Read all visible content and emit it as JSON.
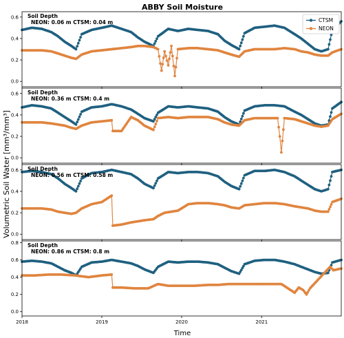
{
  "figure": {
    "title": "ABBY Soil Moisture",
    "xlabel": "Time",
    "ylabel": "Volumetric Soil Water [mm³/mm³]"
  },
  "chart_data": [
    {
      "type": "scatter",
      "panel_label": "Soil Depth",
      "depth_text": "NEON: 0.06 m  CTSM: 0.04 m",
      "ylim": [
        -0.05,
        0.65
      ],
      "yticks": [
        0.0,
        0.2,
        0.4,
        0.6
      ],
      "xlim": [
        "2018-01-01",
        "2021-12-31"
      ],
      "xticks": [
        "2018",
        "2019",
        "2020",
        "2021"
      ],
      "legend": {
        "placement": "top-right",
        "entries": [
          "CTSM",
          "NEON"
        ]
      },
      "series": [
        {
          "name": "CTSM",
          "color": "#1f6080",
          "x": [
            "2018-01-01",
            "2018-02-15",
            "2018-04-01",
            "2018-05-15",
            "2018-06-15",
            "2018-07-15",
            "2018-08-15",
            "2018-09-05",
            "2018-10-01",
            "2018-11-15",
            "2019-01-01",
            "2019-02-15",
            "2019-04-01",
            "2019-05-15",
            "2019-06-15",
            "2019-07-15",
            "2019-08-25",
            "2019-09-15",
            "2019-11-01",
            "2019-12-15",
            "2020-02-01",
            "2020-03-15",
            "2020-05-01",
            "2020-06-15",
            "2020-07-15",
            "2020-08-15",
            "2020-09-20",
            "2020-10-15",
            "2020-11-30",
            "2021-01-15",
            "2021-03-01",
            "2021-04-15",
            "2021-06-01",
            "2021-07-01",
            "2021-08-01",
            "2021-09-01",
            "2021-10-01",
            "2021-11-01",
            "2021-11-20",
            "2021-12-31"
          ],
          "y": [
            0.48,
            0.5,
            0.49,
            0.46,
            0.42,
            0.37,
            0.33,
            0.3,
            0.44,
            0.48,
            0.5,
            0.52,
            0.49,
            0.46,
            0.41,
            0.37,
            0.33,
            0.42,
            0.49,
            0.47,
            0.49,
            0.48,
            0.47,
            0.44,
            0.38,
            0.34,
            0.3,
            0.45,
            0.5,
            0.51,
            0.52,
            0.5,
            0.44,
            0.4,
            0.35,
            0.3,
            0.28,
            0.3,
            0.48,
            0.56
          ]
        },
        {
          "name": "NEON",
          "color": "#e0853f",
          "x": [
            "2018-01-01",
            "2018-02-15",
            "2018-04-01",
            "2018-05-15",
            "2018-06-15",
            "2018-07-15",
            "2018-08-15",
            "2018-09-05",
            "2018-10-01",
            "2018-11-15",
            "2019-01-01",
            "2019-02-15",
            "2019-04-01",
            "2019-05-15",
            "2019-06-15",
            "2019-07-15",
            "2019-08-25",
            "2019-09-15",
            "2019-10-01",
            "2019-10-15",
            "2019-11-01",
            "2019-11-15",
            "2019-12-01",
            "2019-12-15",
            "2020-02-01",
            "2020-03-15",
            "2020-05-01",
            "2020-06-15",
            "2020-07-15",
            "2020-08-15",
            "2020-09-20",
            "2020-10-15",
            "2020-11-30",
            "2021-01-15",
            "2021-03-01",
            "2021-04-15",
            "2021-06-01",
            "2021-07-01",
            "2021-08-01",
            "2021-09-01",
            "2021-10-01",
            "2021-11-01",
            "2021-11-20",
            "2021-12-31"
          ],
          "y": [
            0.29,
            0.29,
            0.29,
            0.28,
            0.26,
            0.24,
            0.22,
            0.21,
            0.25,
            0.28,
            0.29,
            0.3,
            0.31,
            0.32,
            0.33,
            0.33,
            0.32,
            0.3,
            0.1,
            0.28,
            0.15,
            0.33,
            0.05,
            0.3,
            0.31,
            0.31,
            0.3,
            0.29,
            0.27,
            0.25,
            0.23,
            0.28,
            0.3,
            0.3,
            0.3,
            0.31,
            0.3,
            0.28,
            0.27,
            0.25,
            0.24,
            0.24,
            0.27,
            0.3
          ]
        }
      ]
    },
    {
      "type": "scatter",
      "panel_label": "Soil Depth",
      "depth_text": "NEON: 0.36 m  CTSM: 0.4 m",
      "ylim": [
        -0.05,
        0.65
      ],
      "yticks": [
        0.0,
        0.2,
        0.4,
        0.6
      ],
      "xlim": [
        "2018-01-01",
        "2021-12-31"
      ],
      "xticks": [
        "2018",
        "2019",
        "2020",
        "2021"
      ],
      "series": [
        {
          "name": "CTSM",
          "color": "#1f6080",
          "x": [
            "2018-01-01",
            "2018-02-15",
            "2018-04-01",
            "2018-05-15",
            "2018-06-15",
            "2018-07-15",
            "2018-08-15",
            "2018-09-05",
            "2018-10-01",
            "2018-11-15",
            "2019-01-01",
            "2019-02-15",
            "2019-04-01",
            "2019-05-15",
            "2019-06-15",
            "2019-07-15",
            "2019-08-25",
            "2019-09-15",
            "2019-11-01",
            "2019-12-15",
            "2020-02-01",
            "2020-03-15",
            "2020-05-01",
            "2020-06-15",
            "2020-07-15",
            "2020-08-15",
            "2020-09-20",
            "2020-10-15",
            "2020-11-30",
            "2021-01-15",
            "2021-03-01",
            "2021-04-15",
            "2021-06-01",
            "2021-07-01",
            "2021-08-01",
            "2021-09-01",
            "2021-10-01",
            "2021-11-01",
            "2021-11-20",
            "2021-12-31"
          ],
          "y": [
            0.47,
            0.49,
            0.48,
            0.46,
            0.42,
            0.38,
            0.34,
            0.31,
            0.43,
            0.47,
            0.48,
            0.5,
            0.48,
            0.45,
            0.41,
            0.37,
            0.34,
            0.42,
            0.48,
            0.47,
            0.48,
            0.47,
            0.46,
            0.43,
            0.38,
            0.34,
            0.31,
            0.44,
            0.48,
            0.49,
            0.49,
            0.48,
            0.43,
            0.4,
            0.36,
            0.32,
            0.3,
            0.31,
            0.46,
            0.52
          ]
        },
        {
          "name": "NEON",
          "color": "#e0853f",
          "x": [
            "2018-01-01",
            "2018-02-15",
            "2018-04-01",
            "2018-05-15",
            "2018-06-15",
            "2018-07-15",
            "2018-08-15",
            "2018-09-05",
            "2018-10-01",
            "2018-11-15",
            "2019-01-01",
            "2019-02-15",
            "2019-02-20",
            "2019-04-01",
            "2019-05-15",
            "2019-06-15",
            "2019-07-15",
            "2019-08-25",
            "2019-09-15",
            "2019-11-01",
            "2019-12-15",
            "2020-02-01",
            "2020-03-15",
            "2020-05-01",
            "2020-06-15",
            "2020-07-15",
            "2020-08-15",
            "2020-09-20",
            "2020-10-15",
            "2020-11-30",
            "2021-01-15",
            "2021-02-15",
            "2021-03-15",
            "2021-03-25",
            "2021-04-01",
            "2021-04-15",
            "2021-06-01",
            "2021-07-01",
            "2021-08-01",
            "2021-09-01",
            "2021-10-01",
            "2021-11-01",
            "2021-11-20",
            "2021-12-31"
          ],
          "y": [
            0.33,
            0.33,
            0.33,
            0.32,
            0.31,
            0.3,
            0.28,
            0.27,
            0.3,
            0.33,
            0.34,
            0.35,
            0.25,
            0.25,
            0.38,
            0.35,
            0.3,
            0.26,
            0.37,
            0.38,
            0.37,
            0.38,
            0.38,
            0.38,
            0.36,
            0.33,
            0.31,
            0.3,
            0.35,
            0.37,
            0.37,
            0.37,
            0.37,
            0.2,
            0.05,
            0.37,
            0.36,
            0.34,
            0.32,
            0.3,
            0.29,
            0.3,
            0.36,
            0.41
          ]
        }
      ]
    },
    {
      "type": "scatter",
      "panel_label": "Soil Depth",
      "depth_text": "NEON: 0.56 m  CTSM: 0.58 m",
      "ylim": [
        -0.05,
        0.65
      ],
      "yticks": [
        0.0,
        0.2,
        0.4,
        0.6
      ],
      "xlim": [
        "2018-01-01",
        "2021-12-31"
      ],
      "xticks": [
        "2018",
        "2019",
        "2020",
        "2021"
      ],
      "series": [
        {
          "name": "CTSM",
          "color": "#1f6080",
          "x": [
            "2018-01-01",
            "2018-02-15",
            "2018-04-01",
            "2018-05-15",
            "2018-06-15",
            "2018-07-15",
            "2018-08-15",
            "2018-09-05",
            "2018-10-01",
            "2018-11-15",
            "2019-01-01",
            "2019-02-15",
            "2019-04-01",
            "2019-05-15",
            "2019-06-15",
            "2019-07-15",
            "2019-08-25",
            "2019-09-15",
            "2019-11-01",
            "2019-12-15",
            "2020-02-01",
            "2020-03-15",
            "2020-05-01",
            "2020-06-15",
            "2020-07-15",
            "2020-08-15",
            "2020-09-20",
            "2020-10-15",
            "2020-11-30",
            "2021-01-15",
            "2021-03-01",
            "2021-04-15",
            "2021-06-01",
            "2021-07-01",
            "2021-08-01",
            "2021-09-01",
            "2021-10-01",
            "2021-11-01",
            "2021-11-20",
            "2021-12-31"
          ],
          "y": [
            0.58,
            0.59,
            0.58,
            0.56,
            0.52,
            0.47,
            0.43,
            0.4,
            0.52,
            0.57,
            0.58,
            0.6,
            0.58,
            0.56,
            0.52,
            0.47,
            0.43,
            0.52,
            0.58,
            0.57,
            0.58,
            0.58,
            0.57,
            0.54,
            0.49,
            0.45,
            0.42,
            0.55,
            0.59,
            0.59,
            0.6,
            0.58,
            0.54,
            0.5,
            0.46,
            0.42,
            0.4,
            0.42,
            0.58,
            0.6
          ]
        },
        {
          "name": "NEON",
          "color": "#e0853f",
          "x": [
            "2018-01-01",
            "2018-02-15",
            "2018-04-01",
            "2018-05-15",
            "2018-06-15",
            "2018-07-15",
            "2018-08-15",
            "2018-09-05",
            "2018-10-01",
            "2018-11-15",
            "2019-01-01",
            "2019-02-15",
            "2019-02-20",
            "2019-04-01",
            "2019-05-15",
            "2019-06-15",
            "2019-07-15",
            "2019-08-25",
            "2019-09-15",
            "2019-10-15",
            "2019-11-15",
            "2019-12-15",
            "2020-02-01",
            "2020-03-15",
            "2020-05-01",
            "2020-06-15",
            "2020-07-15",
            "2020-08-15",
            "2020-09-20",
            "2020-10-15",
            "2020-11-30",
            "2021-01-15",
            "2021-03-01",
            "2021-04-15",
            "2021-06-01",
            "2021-07-01",
            "2021-08-01",
            "2021-09-01",
            "2021-10-01",
            "2021-11-01",
            "2021-11-20",
            "2021-12-31"
          ],
          "y": [
            0.24,
            0.24,
            0.24,
            0.23,
            0.21,
            0.2,
            0.19,
            0.2,
            0.24,
            0.28,
            0.3,
            0.36,
            0.08,
            0.09,
            0.11,
            0.12,
            0.13,
            0.14,
            0.17,
            0.2,
            0.21,
            0.22,
            0.28,
            0.29,
            0.29,
            0.28,
            0.27,
            0.25,
            0.24,
            0.27,
            0.28,
            0.29,
            0.29,
            0.28,
            0.26,
            0.25,
            0.24,
            0.22,
            0.21,
            0.21,
            0.3,
            0.33
          ]
        }
      ]
    },
    {
      "type": "scatter",
      "panel_label": "Soil Depth",
      "depth_text": "NEON: 0.86 m  CTSM: 0.8 m",
      "ylim": [
        -0.05,
        0.82
      ],
      "yticks": [
        0.0,
        0.2,
        0.4,
        0.6,
        0.8
      ],
      "xlim": [
        "2018-01-01",
        "2021-12-31"
      ],
      "xticks": [
        "2018",
        "2019",
        "2020",
        "2021"
      ],
      "series": [
        {
          "name": "CTSM",
          "color": "#1f6080",
          "x": [
            "2018-01-01",
            "2018-02-15",
            "2018-04-01",
            "2018-05-15",
            "2018-06-15",
            "2018-07-15",
            "2018-08-15",
            "2018-09-05",
            "2018-10-01",
            "2018-11-15",
            "2019-01-01",
            "2019-02-15",
            "2019-04-01",
            "2019-05-15",
            "2019-06-15",
            "2019-07-15",
            "2019-08-25",
            "2019-09-15",
            "2019-11-01",
            "2019-12-15",
            "2020-02-01",
            "2020-03-15",
            "2020-05-01",
            "2020-06-15",
            "2020-07-15",
            "2020-08-15",
            "2020-09-20",
            "2020-10-15",
            "2020-11-30",
            "2021-01-15",
            "2021-03-01",
            "2021-04-15",
            "2021-06-01",
            "2021-07-01",
            "2021-08-01",
            "2021-09-01",
            "2021-10-01",
            "2021-11-01",
            "2021-11-20",
            "2021-12-31"
          ],
          "y": [
            0.58,
            0.59,
            0.58,
            0.56,
            0.52,
            0.48,
            0.45,
            0.42,
            0.52,
            0.57,
            0.58,
            0.6,
            0.58,
            0.56,
            0.53,
            0.49,
            0.45,
            0.52,
            0.58,
            0.57,
            0.58,
            0.58,
            0.57,
            0.55,
            0.51,
            0.47,
            0.44,
            0.55,
            0.59,
            0.6,
            0.6,
            0.58,
            0.55,
            0.52,
            0.49,
            0.46,
            0.44,
            0.45,
            0.57,
            0.6
          ]
        },
        {
          "name": "NEON",
          "color": "#e0853f",
          "x": [
            "2018-01-01",
            "2018-03-01",
            "2018-05-01",
            "2018-07-01",
            "2018-09-01",
            "2018-11-01",
            "2019-01-01",
            "2019-02-15",
            "2019-02-20",
            "2019-04-01",
            "2019-06-01",
            "2019-08-01",
            "2019-09-15",
            "2019-11-01",
            "2020-01-01",
            "2020-03-01",
            "2020-05-01",
            "2020-06-15",
            "2020-08-01",
            "2020-09-15",
            "2021-04-01",
            "2021-06-01",
            "2021-06-20",
            "2021-07-10",
            "2021-07-25",
            "2021-08-10",
            "2021-11-10",
            "2021-11-25",
            "2021-12-31"
          ],
          "y": [
            0.42,
            0.42,
            0.43,
            0.43,
            0.42,
            0.4,
            0.42,
            0.43,
            0.28,
            0.28,
            0.27,
            0.27,
            0.32,
            0.3,
            0.3,
            0.3,
            0.31,
            0.31,
            0.32,
            0.32,
            0.32,
            0.22,
            0.28,
            0.25,
            0.2,
            0.27,
            0.52,
            0.48,
            0.5
          ]
        }
      ]
    }
  ]
}
